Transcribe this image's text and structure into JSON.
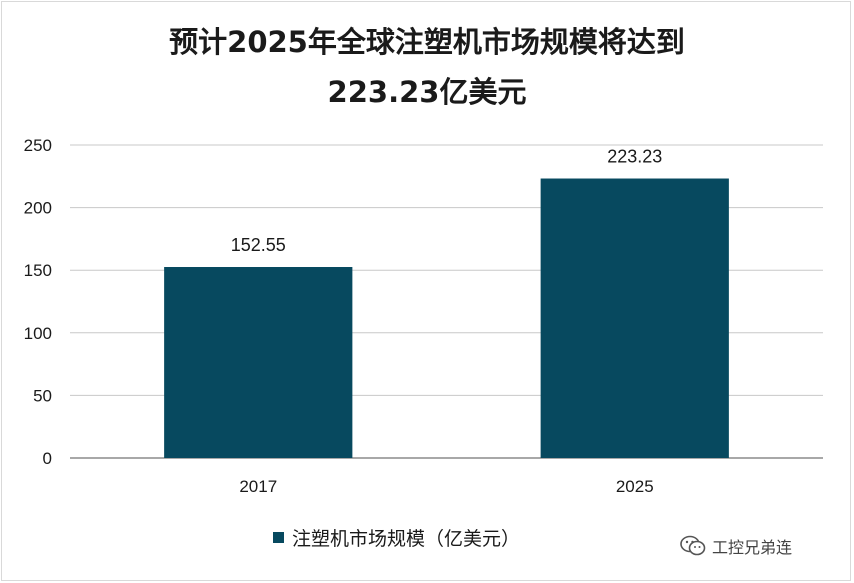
{
  "chart_data": {
    "type": "bar",
    "title": "预计2025年全球注塑机市场规模将达到223.23亿美元",
    "title_lines": [
      "预计2025年全球注塑机市场规模将达到",
      "223.23亿美元"
    ],
    "categories": [
      "2017",
      "2025"
    ],
    "series": [
      {
        "name": "注塑机市场规模（亿美元）",
        "values": [
          152.55,
          223.23
        ],
        "color": "#07495f"
      }
    ],
    "data_labels": [
      "152.55",
      "223.23"
    ],
    "ylim": [
      0,
      250
    ],
    "yticks": [
      0,
      50,
      100,
      150,
      200,
      250
    ],
    "grid": true,
    "legend_position": "bottom"
  },
  "watermark": {
    "text": "工控兄弟连",
    "icon": "wechat-icon"
  }
}
